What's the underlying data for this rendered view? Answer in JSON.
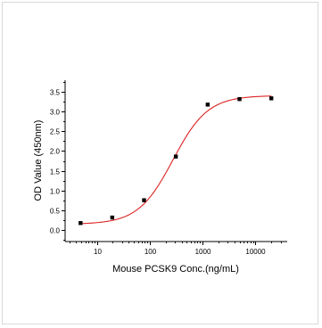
{
  "chart_data": {
    "type": "scatter",
    "title": "",
    "xlabel": "Mouse PCSK9 Conc.(ng/mL)",
    "ylabel": "OD Value (450nm)",
    "x_scale": "log",
    "xlim": [
      2.5,
      40000
    ],
    "ylim": [
      -0.3,
      3.8
    ],
    "grid": false,
    "legend": "none",
    "x_ticks": [
      {
        "value": 10,
        "label": "10"
      },
      {
        "value": 100,
        "label": "100"
      },
      {
        "value": 1000,
        "label": "1000"
      },
      {
        "value": 10000,
        "label": "10000"
      }
    ],
    "y_ticks": [
      {
        "value": 0.0,
        "label": "0.0"
      },
      {
        "value": 0.5,
        "label": "0.5"
      },
      {
        "value": 1.0,
        "label": "1.0"
      },
      {
        "value": 1.5,
        "label": "1.5"
      },
      {
        "value": 2.0,
        "label": "2.0"
      },
      {
        "value": 2.5,
        "label": "2.5"
      },
      {
        "value": 3.0,
        "label": "3.0"
      },
      {
        "value": 3.5,
        "label": "3.5"
      }
    ],
    "series": [
      {
        "type": "scatter",
        "color": "#000000",
        "x": [
          4.9,
          19.5,
          78,
          312,
          1250,
          5000,
          20000
        ],
        "y": [
          0.17,
          0.31,
          0.75,
          1.86,
          3.18,
          3.32,
          3.34
        ]
      },
      {
        "type": "line",
        "color": "#dd2222",
        "fit": "4PL",
        "x_range": [
          4.9,
          20000
        ],
        "params": {
          "bottom": 0.14,
          "top": 3.41,
          "ec50": 275,
          "hill": 1.32
        }
      }
    ]
  }
}
